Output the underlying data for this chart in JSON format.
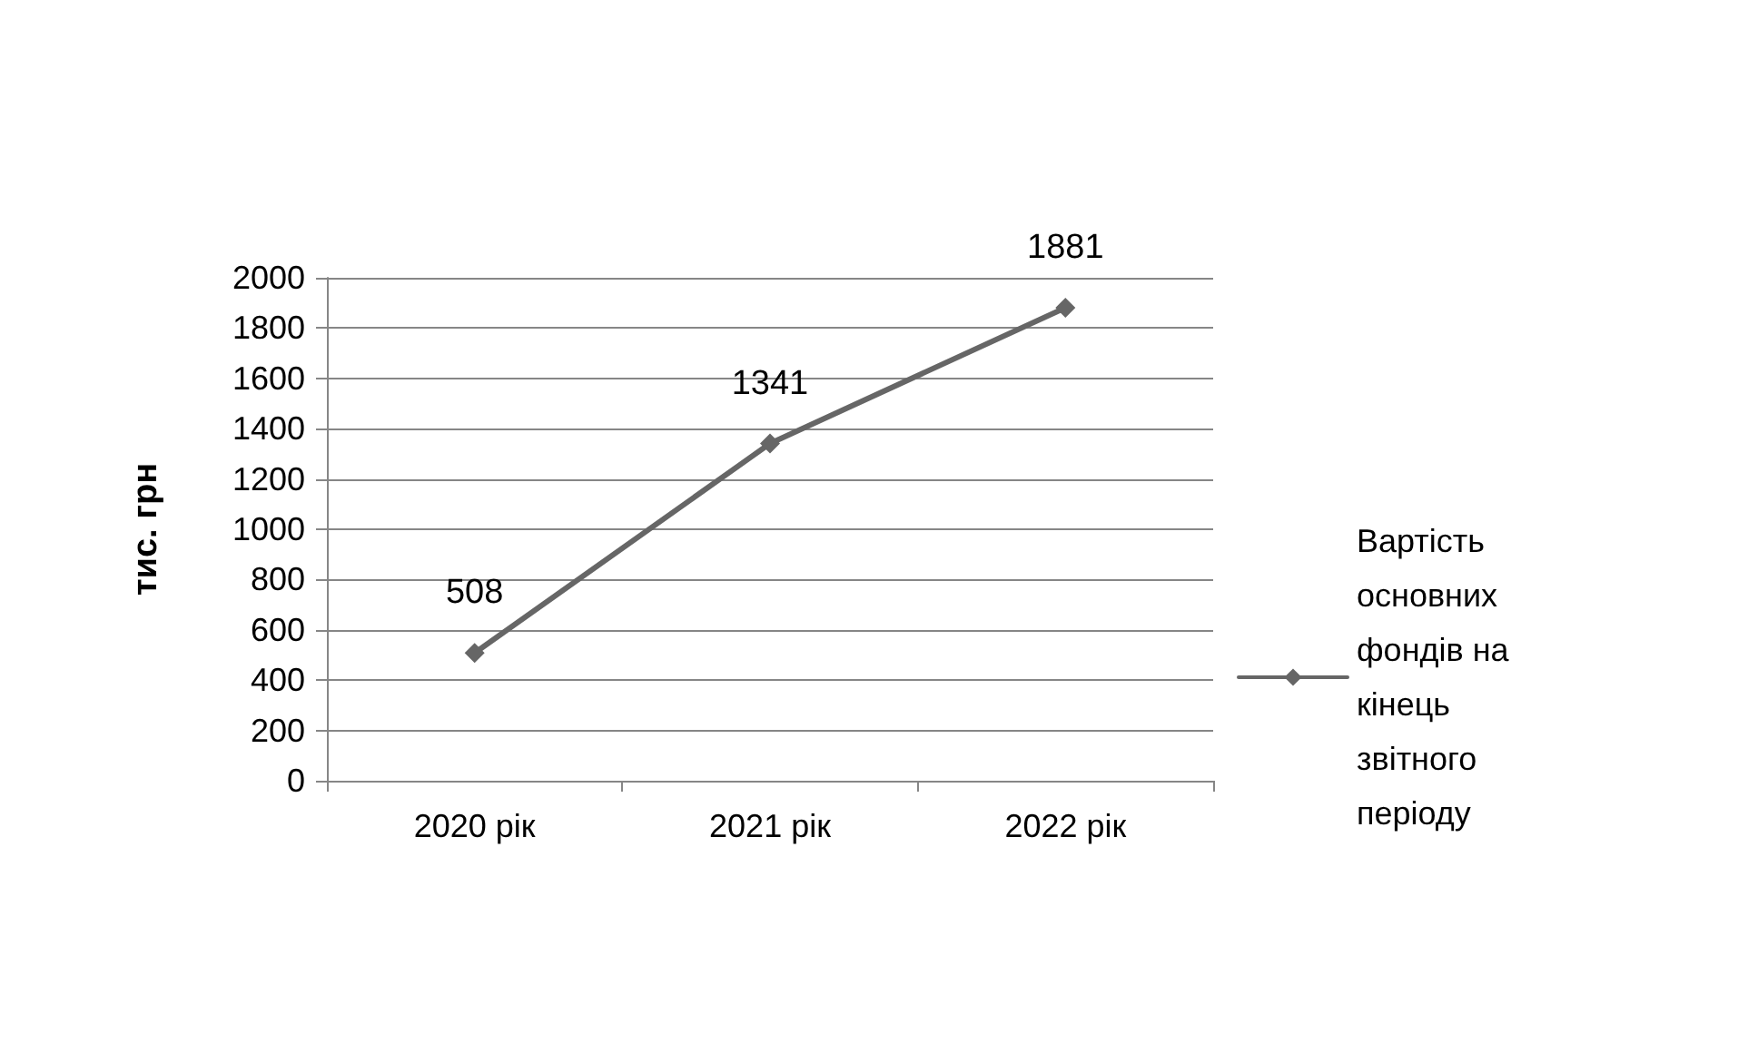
{
  "chart_data": {
    "type": "line",
    "ylabel": "тис. грн",
    "categories": [
      "2020 рік",
      "2021 рік",
      "2022 рік"
    ],
    "series": [
      {
        "name": "Вартість основних фондів на кінець звітного періоду",
        "color": "#666666",
        "values": [
          508,
          1341,
          1881
        ]
      }
    ],
    "ylim": [
      0,
      2000
    ],
    "yticks": [
      0,
      200,
      400,
      600,
      800,
      1000,
      1200,
      1400,
      1600,
      1800,
      2000
    ],
    "grid": "y",
    "legend": "right",
    "marker": "diamond",
    "line_style": "solid",
    "data_labels": true
  }
}
